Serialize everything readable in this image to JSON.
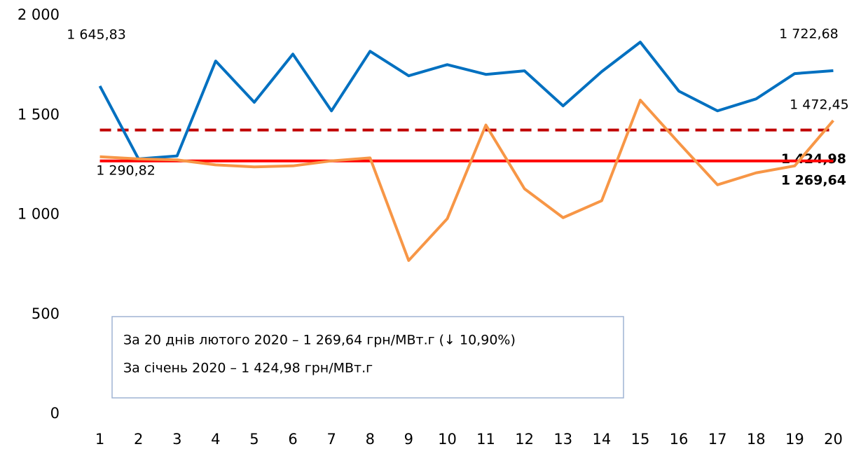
{
  "chart_data": {
    "type": "line",
    "categories": [
      "1",
      "2",
      "3",
      "4",
      "5",
      "6",
      "7",
      "8",
      "9",
      "10",
      "11",
      "12",
      "13",
      "14",
      "15",
      "16",
      "17",
      "18",
      "19",
      "20"
    ],
    "series": [
      {
        "color": "#0070c0",
        "values": [
          1645.83,
          1280,
          1295,
          1771,
          1564,
          1806,
          1521,
          1820,
          1697,
          1753,
          1704,
          1722,
          1546,
          1718,
          1866,
          1620,
          1521,
          1581,
          1708,
          1722.68
        ],
        "value_labels": [
          "1 645,83",
          null,
          null,
          null,
          null,
          null,
          null,
          null,
          null,
          null,
          null,
          null,
          null,
          null,
          null,
          null,
          null,
          null,
          null,
          "1 722,68"
        ]
      },
      {
        "color": "#f79646",
        "values": [
          1290.82,
          1280,
          1275,
          1250,
          1240,
          1245,
          1270,
          1285,
          770,
          980,
          1450,
          1130,
          985,
          1070,
          1575,
          1360,
          1150,
          1210,
          1245,
          1472.45
        ],
        "value_labels": [
          "1 290,82",
          null,
          null,
          null,
          null,
          null,
          null,
          null,
          null,
          null,
          null,
          null,
          null,
          null,
          null,
          null,
          null,
          null,
          null,
          "1 472,45"
        ]
      }
    ],
    "reference_lines": [
      {
        "value": 1424.98,
        "label": "1 424,98",
        "color": "#c00000",
        "dashed": true
      },
      {
        "value": 1269.64,
        "label": "1 269,64",
        "color": "#ff0000",
        "dashed": false
      }
    ],
    "ylim": [
      0,
      2000
    ],
    "yticks": [
      0,
      500,
      {
        "value": 1000,
        "label": "1 000"
      },
      {
        "value": 1500,
        "label": "1 500"
      },
      {
        "value": 2000,
        "label": "2 000"
      }
    ],
    "annotations": [
      "За 20 днів лютого 2020 – 1 269,64 грн/МВт.г (↓ 10,90%)",
      "За січень 2020 – 1 424,98 грн/МВт.г"
    ]
  }
}
